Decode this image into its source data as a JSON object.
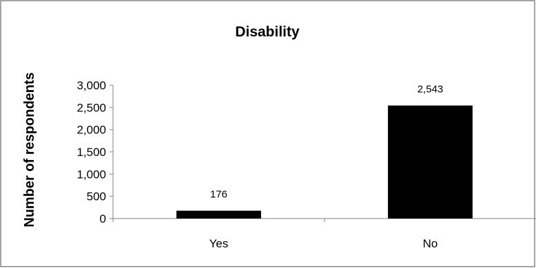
{
  "colors": {
    "bar": "#000000",
    "axis": "#808080",
    "frame": "#868686",
    "background": "#ffffff"
  },
  "chart_data": {
    "type": "bar",
    "title": "Disability",
    "xlabel": "",
    "ylabel": "Number of respondents",
    "categories": [
      "Yes",
      "No"
    ],
    "values": [
      176,
      2543
    ],
    "data_labels": [
      "176",
      "2,543"
    ],
    "ylim": [
      0,
      3000
    ],
    "yticks": [
      0,
      500,
      1000,
      1500,
      2000,
      2500,
      3000
    ],
    "ytick_labels": [
      "0",
      "500",
      "1,000",
      "1,500",
      "2,000",
      "2,500",
      "3,000"
    ],
    "grid": false,
    "legend": "none"
  }
}
